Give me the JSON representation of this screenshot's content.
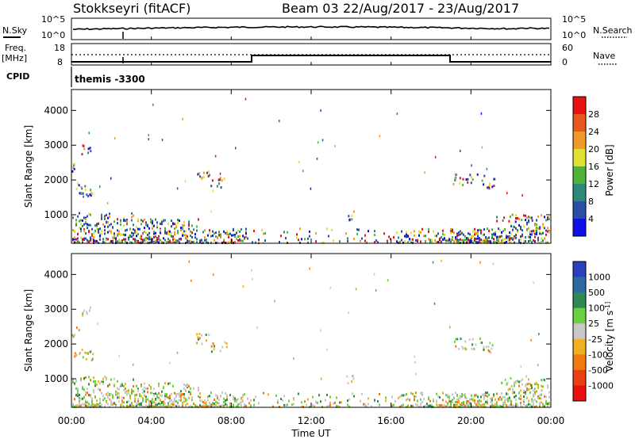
{
  "header": {
    "station": "Stokkseyri (fitACF)",
    "beam": "Beam 03",
    "dates": "22/Aug/2017 - 23/Aug/2017"
  },
  "noise_panel": {
    "left_label": "N.Sky",
    "right_label": "N.Search",
    "left_ticks": [
      "10^5",
      "10^0"
    ],
    "right_ticks": [
      "10^5",
      "10^0"
    ]
  },
  "freq_panel": {
    "left_label_1": "Freq.",
    "left_label_2": "[MHz]",
    "right_label": "Nave",
    "left_ticks": [
      "18",
      "8"
    ],
    "right_ticks": [
      "60",
      "0"
    ]
  },
  "cpid_panel": {
    "label": "CPID",
    "value": "themis -3300"
  },
  "chart_data": [
    {
      "type": "heatmap",
      "name": "power",
      "ylabel": "Slant Range [km]",
      "yticks": [
        "1000",
        "2000",
        "3000",
        "4000"
      ],
      "ylim": [
        180,
        4600
      ],
      "colorbar_label": "Power [dB]",
      "colorbar_ticks": [
        "4",
        "8",
        "12",
        "16",
        "20",
        "24",
        "28"
      ],
      "colorbar_colors": [
        "#1010e8",
        "#2b4fa8",
        "#2e8a78",
        "#4fb33a",
        "#e0e030",
        "#f09a2a",
        "#e8581e",
        "#e81010"
      ]
    },
    {
      "type": "heatmap",
      "name": "velocity",
      "ylabel": "Slant Range [km]",
      "yticks": [
        "1000",
        "2000",
        "3000",
        "4000"
      ],
      "ylim": [
        180,
        4600
      ],
      "colorbar_label": "Velocity [m s^-1]",
      "colorbar_ticks": [
        "1000",
        "500",
        "100",
        "25",
        "-25",
        "-100",
        "-500",
        "-1000"
      ],
      "colorbar_colors": [
        "#2a3ec0",
        "#2e6aa0",
        "#2e8a50",
        "#6ad040",
        "#c8c8c8",
        "#f0b020",
        "#f07a10",
        "#e84010",
        "#e81010"
      ]
    }
  ],
  "time_axis": {
    "ticks": [
      "00:00",
      "04:00",
      "08:00",
      "12:00",
      "16:00",
      "20:00",
      "00:00"
    ],
    "xlabel": "Time UT"
  }
}
